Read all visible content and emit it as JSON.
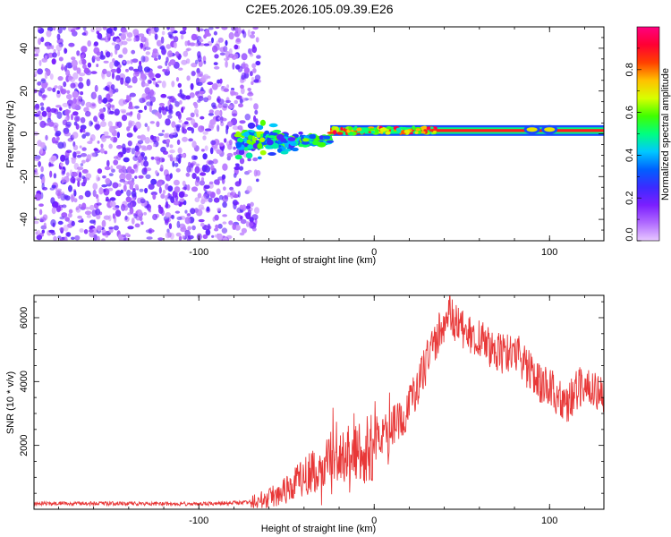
{
  "title": "C2E5.2026.105.09.39.E26",
  "chart_data": [
    {
      "type": "heatmap",
      "name": "spectrogram",
      "xlabel": "Height of straight line (km)",
      "ylabel": "Frequency (Hz)",
      "xlim": [
        -194,
        131
      ],
      "ylim": [
        -50,
        50
      ],
      "xticks": [
        -100,
        0,
        100
      ],
      "xtick_labels": [
        "-100",
        "0",
        "100"
      ],
      "yticks": [
        -40,
        -20,
        0,
        20,
        40
      ],
      "ytick_labels": [
        "-40",
        "-20",
        "0",
        "20",
        "40"
      ],
      "colorbar": {
        "label": "Normalized spectral amplitude",
        "range": [
          0,
          1
        ],
        "ticks": [
          0.0,
          0.2,
          0.4,
          0.6,
          0.8
        ],
        "tick_labels": [
          "0.0",
          "0.2",
          "0.4",
          "0.6",
          "0.8"
        ],
        "colors": [
          "#e8c8ff",
          "#b06aff",
          "#7b1fff",
          "#3b2bff",
          "#0060ff",
          "#00c8ff",
          "#00ff80",
          "#40ff00",
          "#d8ff00",
          "#ffc000",
          "#ff4000",
          "#ff0033",
          "#ff0080"
        ]
      },
      "regions": [
        {
          "name": "noise-scatter",
          "x": [
            -194,
            -66
          ],
          "freq": [
            -50,
            50
          ],
          "amplitude": 0.12
        },
        {
          "name": "sparse-onset",
          "x": [
            -78,
            -25
          ],
          "freq": [
            -8,
            8
          ],
          "amplitude": 0.3
        },
        {
          "name": "carrier-band",
          "x": [
            -25,
            131
          ],
          "freq": [
            0,
            3
          ],
          "amplitude": 0.85
        }
      ]
    },
    {
      "type": "line",
      "name": "snr",
      "xlabel": "Height of straight line (km)",
      "ylabel": "SNR (10 * v/v)",
      "xlim": [
        -194,
        131
      ],
      "ylim": [
        0,
        6700
      ],
      "xticks": [
        -100,
        0,
        100
      ],
      "xtick_labels": [
        "-100",
        "0",
        "100"
      ],
      "yticks": [
        2000,
        4000,
        6000
      ],
      "ytick_labels": [
        "2000",
        "4000",
        "6000"
      ],
      "color": "#e83838",
      "series": [
        {
          "name": "SNR",
          "x": [
            -194,
            -150,
            -120,
            -90,
            -70,
            -60,
            -50,
            -40,
            -30,
            -20,
            -10,
            0,
            10,
            20,
            25,
            30,
            35,
            40,
            43,
            45,
            50,
            55,
            60,
            65,
            70,
            75,
            80,
            85,
            90,
            95,
            100,
            105,
            110,
            115,
            120,
            125,
            131
          ],
          "y": [
            180,
            180,
            170,
            180,
            220,
            350,
            650,
            1000,
            1300,
            1600,
            1800,
            2000,
            2500,
            3200,
            3900,
            4600,
            5300,
            5900,
            6300,
            6000,
            5600,
            5400,
            5300,
            5100,
            4900,
            4800,
            5000,
            4600,
            4200,
            3900,
            3800,
            3500,
            3300,
            3700,
            4000,
            3800,
            3600
          ]
        }
      ]
    }
  ]
}
